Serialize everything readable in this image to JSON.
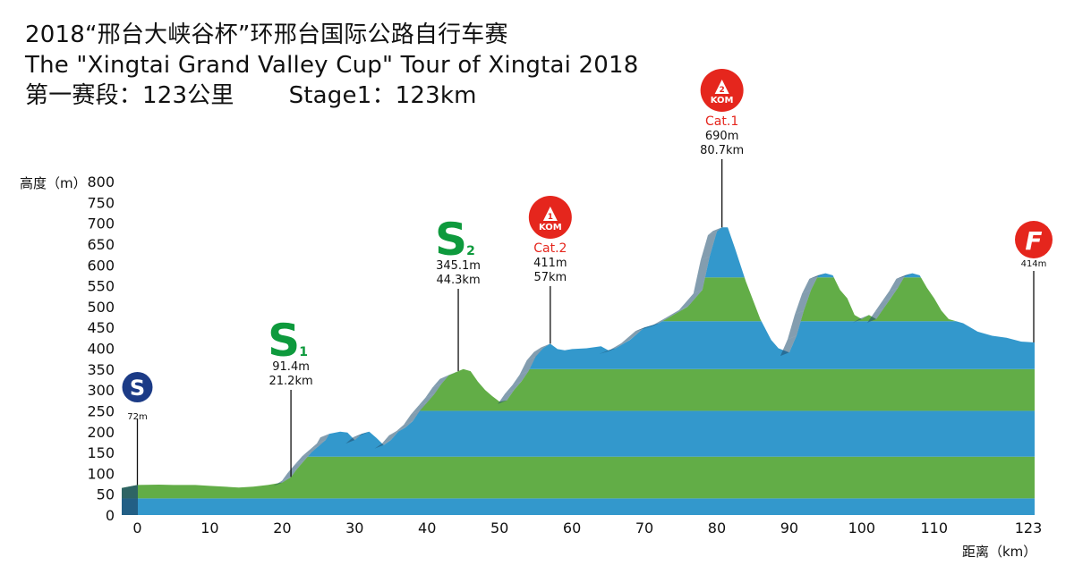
{
  "title": {
    "line1": "2018“邢台大峡谷杯”环邢台国际公路自行车赛",
    "line2": "The \"Xingtai Grand Valley Cup\" Tour of Xingtai 2018",
    "line3_cn": "第一赛段：123公里",
    "line3_en": "Stage1：123km"
  },
  "colors": {
    "blue": "#3398cc",
    "green": "#62ad47",
    "dark": "#1d4c6e",
    "sprint": "#0e9a3d",
    "kom": "#e5261d",
    "start": "#1c3b86"
  },
  "chart_data": {
    "type": "area",
    "ylabel": "高度（m）",
    "xlabel": "距离（km）",
    "ylim": [
      0,
      800
    ],
    "xlim": [
      -2,
      123
    ],
    "yticks": [
      "800",
      "750",
      "700",
      "650",
      "600",
      "550",
      "500",
      "450",
      "400",
      "350",
      "300",
      "250",
      "200",
      "150",
      "100",
      "50",
      "0"
    ],
    "xticks": [
      "0",
      "10",
      "20",
      "30",
      "40",
      "50",
      "60",
      "70",
      "80",
      "90",
      "100",
      "110",
      "123"
    ],
    "profile": [
      [
        -2,
        65
      ],
      [
        0,
        72
      ],
      [
        3,
        73
      ],
      [
        5,
        72
      ],
      [
        8,
        72
      ],
      [
        10,
        70
      ],
      [
        12,
        68
      ],
      [
        14,
        66
      ],
      [
        16,
        68
      ],
      [
        18,
        72
      ],
      [
        20,
        78
      ],
      [
        21.2,
        91
      ],
      [
        22,
        110
      ],
      [
        23,
        130
      ],
      [
        24,
        150
      ],
      [
        25,
        165
      ],
      [
        26,
        180
      ],
      [
        26.5,
        195
      ],
      [
        28,
        200
      ],
      [
        29,
        198
      ],
      [
        30,
        180
      ],
      [
        31,
        195
      ],
      [
        32,
        200
      ],
      [
        33,
        185
      ],
      [
        34,
        168
      ],
      [
        35,
        180
      ],
      [
        36,
        200
      ],
      [
        37,
        210
      ],
      [
        38,
        225
      ],
      [
        39,
        250
      ],
      [
        40,
        270
      ],
      [
        41,
        290
      ],
      [
        42,
        315
      ],
      [
        43,
        335
      ],
      [
        44.3,
        345
      ],
      [
        45,
        350
      ],
      [
        46,
        345
      ],
      [
        47,
        320
      ],
      [
        48,
        300
      ],
      [
        49,
        285
      ],
      [
        50,
        272
      ],
      [
        51,
        275
      ],
      [
        52,
        300
      ],
      [
        53,
        320
      ],
      [
        54,
        345
      ],
      [
        55,
        380
      ],
      [
        56,
        400
      ],
      [
        57,
        411
      ],
      [
        58,
        398
      ],
      [
        59,
        395
      ],
      [
        60,
        398
      ],
      [
        62,
        400
      ],
      [
        64,
        405
      ],
      [
        65,
        395
      ],
      [
        66,
        400
      ],
      [
        68,
        420
      ],
      [
        70,
        450
      ],
      [
        72,
        460
      ],
      [
        74,
        480
      ],
      [
        76,
        500
      ],
      [
        78,
        540
      ],
      [
        79,
        620
      ],
      [
        80,
        680
      ],
      [
        80.7,
        690
      ],
      [
        81.5,
        690
      ],
      [
        82.5,
        640
      ],
      [
        84,
        560
      ],
      [
        86,
        470
      ],
      [
        87.5,
        420
      ],
      [
        88.5,
        400
      ],
      [
        90,
        390
      ],
      [
        91,
        430
      ],
      [
        92,
        490
      ],
      [
        93,
        540
      ],
      [
        94,
        575
      ],
      [
        95,
        580
      ],
      [
        96,
        575
      ],
      [
        97,
        540
      ],
      [
        98,
        520
      ],
      [
        99,
        480
      ],
      [
        100,
        470
      ],
      [
        101,
        480
      ],
      [
        102,
        470
      ],
      [
        103,
        495
      ],
      [
        104,
        520
      ],
      [
        105,
        545
      ],
      [
        106,
        575
      ],
      [
        107,
        580
      ],
      [
        108,
        575
      ],
      [
        109,
        545
      ],
      [
        110,
        520
      ],
      [
        111,
        490
      ],
      [
        112,
        470
      ],
      [
        114,
        460
      ],
      [
        116,
        440
      ],
      [
        118,
        430
      ],
      [
        120,
        425
      ],
      [
        122,
        416
      ],
      [
        123,
        414
      ]
    ],
    "points": [
      {
        "type": "start",
        "badge": "S",
        "km": 0,
        "alt": 72,
        "label": "72m"
      },
      {
        "type": "sprint",
        "badge": "S",
        "sub": "1",
        "km": 21.2,
        "alt": 91.4,
        "alt_label": "91.4m",
        "km_label": "21.2km"
      },
      {
        "type": "sprint",
        "badge": "S",
        "sub": "2",
        "km": 44.3,
        "alt": 345.1,
        "alt_label": "345.1m",
        "km_label": "44.3km"
      },
      {
        "type": "kom",
        "badge": "KOM",
        "num": "1",
        "cat": "Cat.2",
        "km": 57,
        "alt": 411,
        "alt_label": "411m",
        "km_label": "57km"
      },
      {
        "type": "kom",
        "badge": "KOM",
        "num": "2",
        "cat": "Cat.1",
        "km": 80.7,
        "alt": 690,
        "alt_label": "690m",
        "km_label": "80.7km"
      },
      {
        "type": "finish",
        "badge": "F",
        "km": 123,
        "alt": 414,
        "label": "414m"
      }
    ]
  }
}
